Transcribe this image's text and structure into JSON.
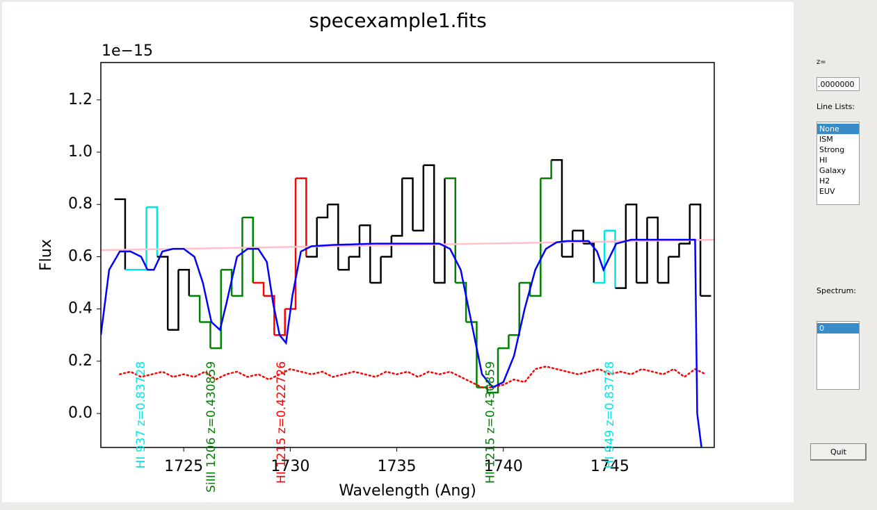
{
  "chart_data": {
    "type": "line",
    "title": "specexample1.fits",
    "x_label": "Wavelength (Ang)",
    "y_label": "Flux",
    "y_offset_label": "1e−15",
    "xlim": [
      1721.11,
      1749.9
    ],
    "ylim": [
      -0.13,
      1.343
    ],
    "xticks": [
      1725,
      1730,
      1735,
      1740,
      1745
    ],
    "yticks": [
      {
        "value": 0,
        "label": "0.0"
      },
      0.2,
      0.4,
      0.6,
      0.8,
      {
        "value": 1,
        "label": "1.0"
      },
      1.2
    ],
    "series": [
      {
        "style": "steps",
        "color": "#000000",
        "x": [
          1722.0,
          1722.5,
          1723.0,
          1723.5,
          1724.0,
          1724.5,
          1725.0,
          1725.5,
          1726.0,
          1726.5,
          1727.0,
          1727.5,
          1728.0,
          1728.5,
          1729.0,
          1729.5,
          1730.0,
          1730.5,
          1731.0,
          1731.5,
          1732.0,
          1732.5,
          1733.0,
          1733.5,
          1734.0,
          1734.5,
          1735.0,
          1735.5,
          1736.0,
          1736.5,
          1737.0,
          1737.5,
          1738.0,
          1738.5,
          1739.0,
          1739.5,
          1740.0,
          1740.5,
          1741.0,
          1741.5,
          1742.0,
          1742.5,
          1743.0,
          1743.5,
          1744.0,
          1744.5,
          1745.0,
          1745.5,
          1746.0,
          1746.5,
          1747.0,
          1747.5,
          1748.0,
          1748.5,
          1749.0,
          1749.5
        ],
        "values": [
          0.82,
          0.55,
          0.55,
          0.79,
          0.6,
          0.32,
          0.55,
          0.45,
          0.35,
          0.25,
          0.55,
          0.45,
          0.75,
          0.5,
          0.45,
          0.3,
          0.4,
          0.9,
          0.6,
          0.75,
          0.8,
          0.55,
          0.6,
          0.72,
          0.5,
          0.6,
          0.68,
          0.9,
          0.7,
          0.95,
          0.5,
          0.9,
          0.5,
          0.35,
          0.1,
          0.08,
          0.25,
          0.3,
          0.5,
          0.45,
          0.9,
          0.97,
          0.6,
          0.7,
          0.65,
          0.5,
          0.7,
          0.48,
          0.8,
          0.5,
          0.75,
          0.5,
          0.6,
          0.65,
          0.8,
          0.45
        ],
        "colors": [
          "#000000",
          "#00e5e5",
          "#00e5e5",
          "#00e5e5",
          "#000000",
          "#000000",
          "#000000",
          "#008000",
          "#008000",
          "#008000",
          "#008000",
          "#008000",
          "#008000",
          "#ff0000",
          "#ff0000",
          "#ff0000",
          "#ff0000",
          "#ff0000",
          "#000000",
          "#000000",
          "#000000",
          "#000000",
          "#000000",
          "#000000",
          "#000000",
          "#000000",
          "#000000",
          "#000000",
          "#000000",
          "#000000",
          "#000000",
          "#008000",
          "#008000",
          "#008000",
          "#008000",
          "#008000",
          "#008000",
          "#008000",
          "#008000",
          "#008000",
          "#008000",
          "#000000",
          "#000000",
          "#000000",
          "#000000",
          "#00e5e5",
          "#00e5e5",
          "#000000",
          "#000000",
          "#000000",
          "#000000",
          "#000000",
          "#000000",
          "#000000",
          "#000000",
          "#000000"
        ]
      },
      {
        "style": "line",
        "color": "#ffc0cb",
        "x": [
          1721.11,
          1749.9
        ],
        "values": [
          0.625,
          0.665
        ]
      },
      {
        "style": "dotted",
        "color": "#ff0000",
        "x": [
          1722.0,
          1722.5,
          1723.0,
          1723.5,
          1724.0,
          1724.5,
          1725.0,
          1725.5,
          1726.0,
          1726.5,
          1727.0,
          1727.5,
          1728.0,
          1728.5,
          1729.0,
          1729.5,
          1730.0,
          1730.5,
          1731.0,
          1731.5,
          1732.0,
          1732.5,
          1733.0,
          1733.5,
          1734.0,
          1734.5,
          1735.0,
          1735.5,
          1736.0,
          1736.5,
          1737.0,
          1737.5,
          1738.0,
          1738.5,
          1739.0,
          1739.5,
          1740.0,
          1740.5,
          1741.0,
          1741.5,
          1742.0,
          1742.5,
          1743.0,
          1743.5,
          1744.0,
          1744.5,
          1745.0,
          1745.5,
          1746.0,
          1746.5,
          1747.0,
          1747.5,
          1748.0,
          1748.5,
          1749.0,
          1749.5
        ],
        "values": [
          0.15,
          0.16,
          0.14,
          0.15,
          0.16,
          0.14,
          0.15,
          0.14,
          0.16,
          0.13,
          0.15,
          0.16,
          0.14,
          0.15,
          0.13,
          0.15,
          0.17,
          0.16,
          0.15,
          0.16,
          0.14,
          0.15,
          0.16,
          0.15,
          0.14,
          0.16,
          0.15,
          0.16,
          0.14,
          0.16,
          0.15,
          0.16,
          0.14,
          0.12,
          0.1,
          0.1,
          0.11,
          0.13,
          0.12,
          0.17,
          0.18,
          0.17,
          0.16,
          0.15,
          0.16,
          0.17,
          0.15,
          0.16,
          0.15,
          0.17,
          0.16,
          0.15,
          0.17,
          0.14,
          0.17,
          0.15
        ]
      },
      {
        "style": "line",
        "color": "#0000ff",
        "x": [
          1721.11,
          1721.5,
          1722,
          1722.5,
          1723,
          1723.3,
          1723.6,
          1724,
          1724.5,
          1725,
          1725.5,
          1725.9,
          1726.3,
          1726.7,
          1727,
          1727.5,
          1728,
          1728.5,
          1728.9,
          1729.2,
          1729.5,
          1729.8,
          1730.1,
          1730.5,
          1731,
          1732,
          1734,
          1736,
          1737,
          1737.5,
          1738,
          1738.5,
          1739,
          1739.5,
          1740,
          1740.5,
          1741,
          1741.5,
          1742,
          1742.5,
          1743,
          1744,
          1744.4,
          1744.7,
          1745,
          1745.3,
          1746,
          1748,
          1749,
          1749.1,
          1749.3
        ],
        "values": [
          0.3,
          0.55,
          0.62,
          0.62,
          0.6,
          0.55,
          0.55,
          0.62,
          0.63,
          0.63,
          0.6,
          0.5,
          0.35,
          0.32,
          0.42,
          0.6,
          0.63,
          0.63,
          0.58,
          0.42,
          0.3,
          0.27,
          0.45,
          0.62,
          0.64,
          0.645,
          0.65,
          0.65,
          0.65,
          0.63,
          0.55,
          0.35,
          0.15,
          0.1,
          0.12,
          0.22,
          0.4,
          0.55,
          0.63,
          0.655,
          0.66,
          0.66,
          0.62,
          0.55,
          0.6,
          0.65,
          0.665,
          0.665,
          0.665,
          0.0,
          -0.13
        ]
      }
    ],
    "annotations": [
      {
        "text": "HI 937 z=0.83728",
        "x": 1723.0,
        "color": "#00e5e5"
      },
      {
        "text": "SiIII 1206 z=0.430859",
        "x": 1726.3,
        "color": "#008000"
      },
      {
        "text": "HI 1215 z=0.422726",
        "x": 1729.6,
        "color": "#ff0000"
      },
      {
        "text": "HI 1215 z=0.430859",
        "x": 1739.4,
        "color": "#008000"
      },
      {
        "text": "HI 949 z=0.83728",
        "x": 1745.0,
        "color": "#00e5e5"
      }
    ]
  },
  "ui": {
    "z_label": "z=",
    "z_value": ".0000000",
    "line_lists_label": "Line Lists:",
    "line_lists": [
      "None",
      "ISM",
      "Strong",
      "HI",
      "Galaxy",
      "H2",
      "EUV"
    ],
    "spectrum_label": "Spectrum:",
    "spectra": [
      "0"
    ],
    "quit": "Quit"
  }
}
